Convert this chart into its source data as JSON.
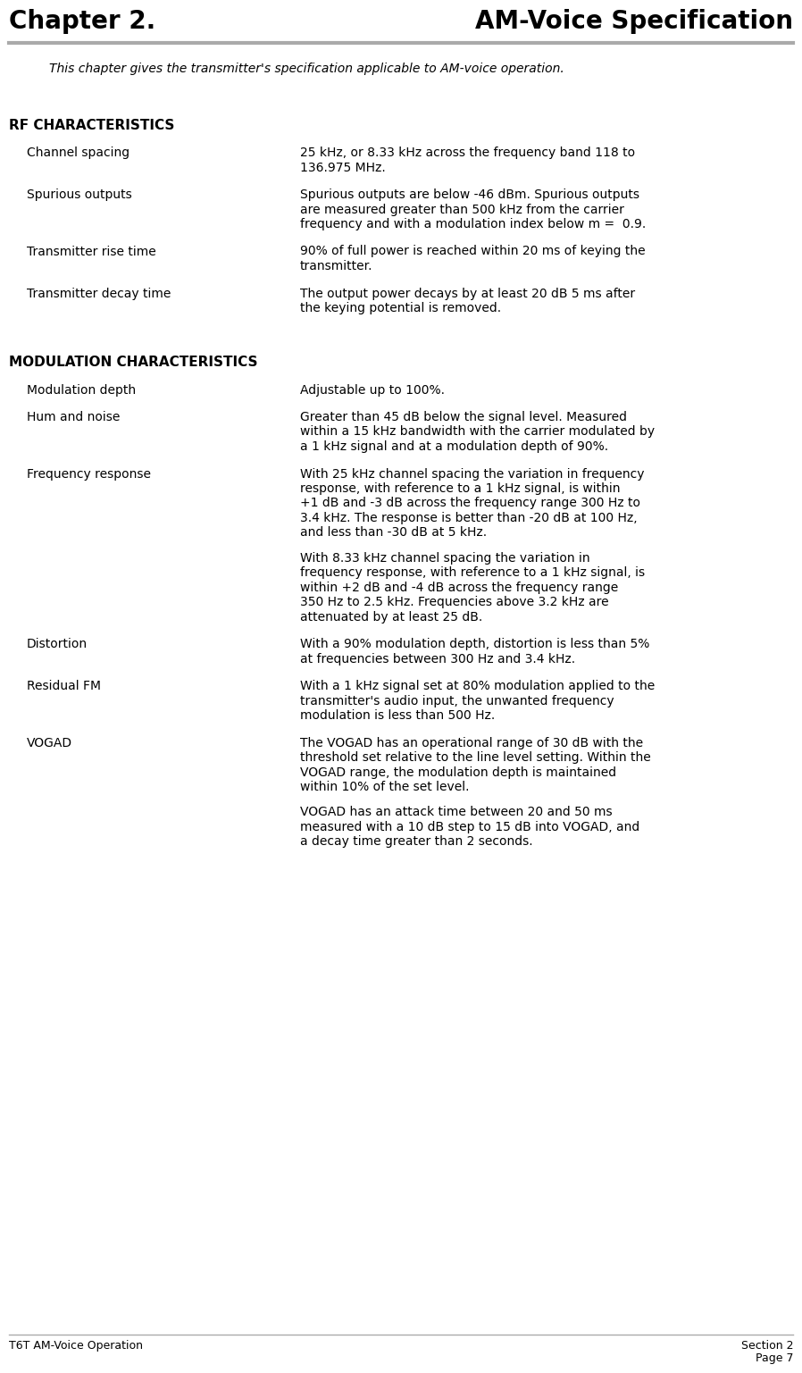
{
  "title_left": "Chapter 2.",
  "title_right": "AM-Voice Specification",
  "header_line_color": "#aaaaaa",
  "subtitle": "This chapter gives the transmitter's specification applicable to AM-voice operation.",
  "footer_left": "T6T AM-Voice Operation",
  "footer_right_line1": "Section 2",
  "footer_right_line2": "Page 7",
  "footer_line_color": "#aaaaaa",
  "bg_color": "#ffffff",
  "text_color": "#000000",
  "entries": [
    {
      "section": "RF CHARACTERISTICS",
      "term": "Channel spacing",
      "definition": [
        "25 kHz, or 8.33 kHz across the frequency band 118 to",
        "136.975 MHz."
      ]
    },
    {
      "section": "RF CHARACTERISTICS",
      "term": "Spurious outputs",
      "definition": [
        "Spurious outputs are below -46 dBm. Spurious outputs",
        "are measured greater than 500 kHz from the carrier",
        "frequency and with a modulation index below m =  0.9."
      ]
    },
    {
      "section": "RF CHARACTERISTICS",
      "term": "Transmitter rise time",
      "definition": [
        "90% of full power is reached within 20 ms of keying the",
        "transmitter."
      ]
    },
    {
      "section": "RF CHARACTERISTICS",
      "term": "Transmitter decay time",
      "definition": [
        "The output power decays by at least 20 dB 5 ms after",
        "the keying potential is removed."
      ]
    },
    {
      "section": "MODULATION CHARACTERISTICS",
      "term": "Modulation depth",
      "definition": [
        "Adjustable up to 100%."
      ]
    },
    {
      "section": "MODULATION CHARACTERISTICS",
      "term": "Hum and noise",
      "definition": [
        "Greater than 45 dB below the signal level. Measured",
        "within a 15 kHz bandwidth with the carrier modulated by",
        "a 1 kHz signal and at a modulation depth of 90%."
      ]
    },
    {
      "section": "MODULATION CHARACTERISTICS",
      "term": "Frequency response",
      "definition": [
        "With 25 kHz channel spacing the variation in frequency",
        "response, with reference to a 1 kHz signal, is within",
        "+1 dB and -3 dB across the frequency range 300 Hz to",
        "3.4 kHz. The response is better than -20 dB at 100 Hz,",
        "and less than -30 dB at 5 kHz.",
        "",
        "With 8.33 kHz channel spacing the variation in",
        "frequency response, with reference to a 1 kHz signal, is",
        "within +2 dB and -4 dB across the frequency range",
        "350 Hz to 2.5 kHz. Frequencies above 3.2 kHz are",
        "attenuated by at least 25 dB."
      ]
    },
    {
      "section": "MODULATION CHARACTERISTICS",
      "term": "Distortion",
      "definition": [
        "With a 90% modulation depth, distortion is less than 5%",
        "at frequencies between 300 Hz and 3.4 kHz."
      ]
    },
    {
      "section": "MODULATION CHARACTERISTICS",
      "term": "Residual FM",
      "definition": [
        "With a 1 kHz signal set at 80% modulation applied to the",
        "transmitter's audio input, the unwanted frequency",
        "modulation is less than 500 Hz."
      ]
    },
    {
      "section": "MODULATION CHARACTERISTICS",
      "term": "VOGAD",
      "definition": [
        "The VOGAD has an operational range of 30 dB with the",
        "threshold set relative to the line level setting. Within the",
        "VOGAD range, the modulation depth is maintained",
        "within 10% of the set level.",
        "",
        "VOGAD has an attack time between 20 and 50 ms",
        "measured with a 10 dB step to 15 dB into VOGAD, and",
        "a decay time greater than 2 seconds."
      ]
    }
  ]
}
